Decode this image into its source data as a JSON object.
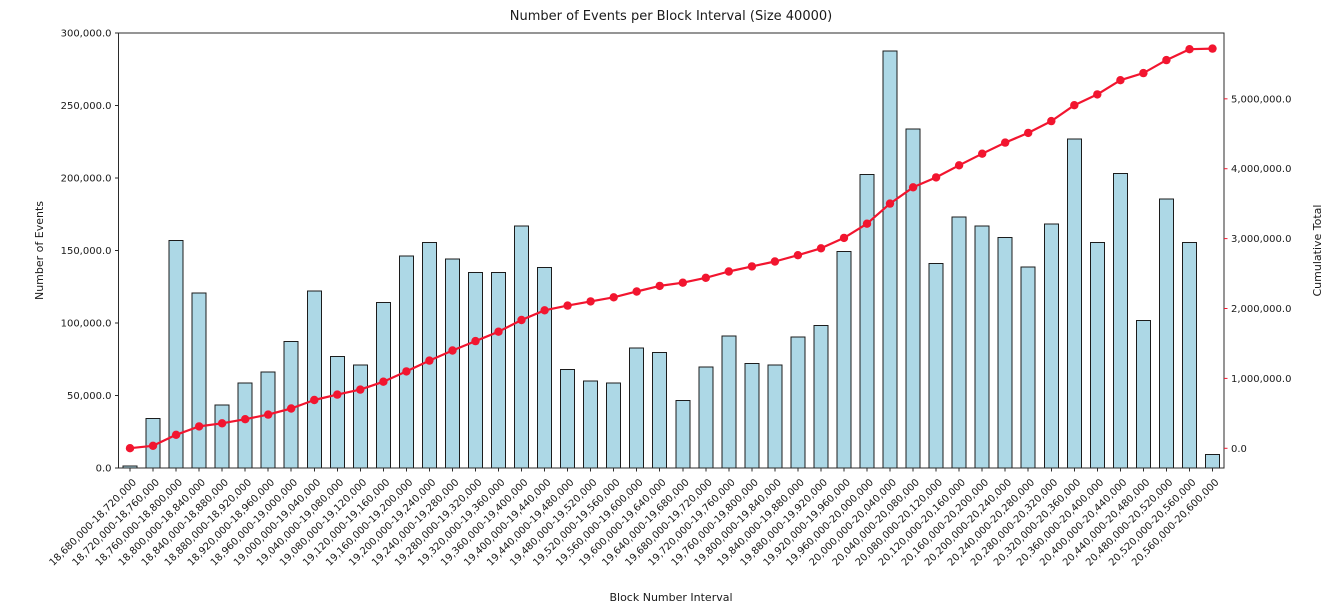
{
  "chart_data": {
    "type": "bar",
    "title": "Number of Events per Block Interval (Size 40000)",
    "xlabel": "Block Number Interval",
    "ylabel_left": "Number of Events",
    "ylabel_right": "Cumulative Total",
    "grid": false,
    "legend": "none",
    "colors": {
      "bar_fill": "#add8e6",
      "bar_edge": "#1c1c1c",
      "line": "#f2152f",
      "right_axis_text": "#f2152f",
      "axis_text": "#1a1a1a",
      "spine": "#2b2b2b",
      "background": "#ffffff"
    },
    "categories": [
      "18,680,000-18,720,000",
      "18,720,000-18,760,000",
      "18,760,000-18,800,000",
      "18,800,000-18,840,000",
      "18,840,000-18,880,000",
      "18,880,000-18,920,000",
      "18,920,000-18,960,000",
      "18,960,000-19,000,000",
      "19,000,000-19,040,000",
      "19,040,000-19,080,000",
      "19,080,000-19,120,000",
      "19,120,000-19,160,000",
      "19,160,000-19,200,000",
      "19,200,000-19,240,000",
      "19,240,000-19,280,000",
      "19,280,000-19,320,000",
      "19,320,000-19,360,000",
      "19,360,000-19,400,000",
      "19,400,000-19,440,000",
      "19,440,000-19,480,000",
      "19,480,000-19,520,000",
      "19,520,000-19,560,000",
      "19,560,000-19,600,000",
      "19,600,000-19,640,000",
      "19,640,000-19,680,000",
      "19,680,000-19,720,000",
      "19,720,000-19,760,000",
      "19,760,000-19,800,000",
      "19,800,000-19,840,000",
      "19,840,000-19,880,000",
      "19,880,000-19,920,000",
      "19,920,000-19,960,000",
      "19,960,000-20,000,000",
      "20,000,000-20,040,000",
      "20,040,000-20,080,000",
      "20,080,000-20,120,000",
      "20,120,000-20,160,000",
      "20,160,000-20,200,000",
      "20,200,000-20,240,000",
      "20,240,000-20,280,000",
      "20,280,000-20,320,000",
      "20,320,000-20,360,000",
      "20,360,000-20,400,000",
      "20,400,000-20,440,000",
      "20,440,000-20,480,000",
      "20,480,000-20,520,000",
      "20,520,000-20,560,000",
      "20,560,000-20,600,000"
    ],
    "series": [
      {
        "name": "Number of Events",
        "type": "bar",
        "yaxis": "left",
        "values": [
          1500,
          34300,
          157000,
          120800,
          43500,
          58700,
          66300,
          87300,
          121900,
          76900,
          71200,
          114000,
          146300,
          155500,
          144000,
          134800,
          134800,
          167000,
          138200,
          67900,
          59900,
          58700,
          82900,
          79500,
          46500,
          69500,
          91000,
          71900,
          70900,
          90300,
          98400,
          149300,
          202300,
          287500,
          233800,
          141000,
          173200,
          167000,
          159000,
          138700,
          168200,
          226900,
          155500,
          203200,
          101800,
          185500,
          155500,
          9200
        ]
      },
      {
        "name": "Cumulative Total",
        "type": "line",
        "yaxis": "right",
        "marker": "circle",
        "values": [
          1500,
          35800,
          192800,
          313600,
          357100,
          415800,
          482100,
          569400,
          691300,
          768200,
          839400,
          953400,
          1099700,
          1255200,
          1399200,
          1534000,
          1668800,
          1835800,
          1974000,
          2041900,
          2101800,
          2160500,
          2243400,
          2322900,
          2369400,
          2438900,
          2529900,
          2601800,
          2672700,
          2763000,
          2861400,
          3010700,
          3213000,
          3500500,
          3734300,
          3875300,
          4048500,
          4215500,
          4374500,
          4513200,
          4681400,
          4908300,
          5063800,
          5267000,
          5368800,
          5554300,
          5709800,
          5719000
        ]
      }
    ],
    "left_axis": {
      "lim": [
        0,
        300000
      ],
      "tick_values": [
        0,
        50000,
        100000,
        150000,
        200000,
        250000,
        300000
      ],
      "tick_labels": [
        "0.0",
        "50,000.0",
        "100,000.0",
        "150,000.0",
        "200,000.0",
        "250,000.0",
        "300,000.0"
      ]
    },
    "right_axis": {
      "lim": [
        -282000,
        5942000
      ],
      "tick_values": [
        0,
        1000000,
        2000000,
        3000000,
        4000000,
        5000000
      ],
      "tick_labels": [
        "0.0",
        "1,000,000.0",
        "2,000,000.0",
        "3,000,000.0",
        "4,000,000.0",
        "5,000,000.0"
      ]
    }
  }
}
